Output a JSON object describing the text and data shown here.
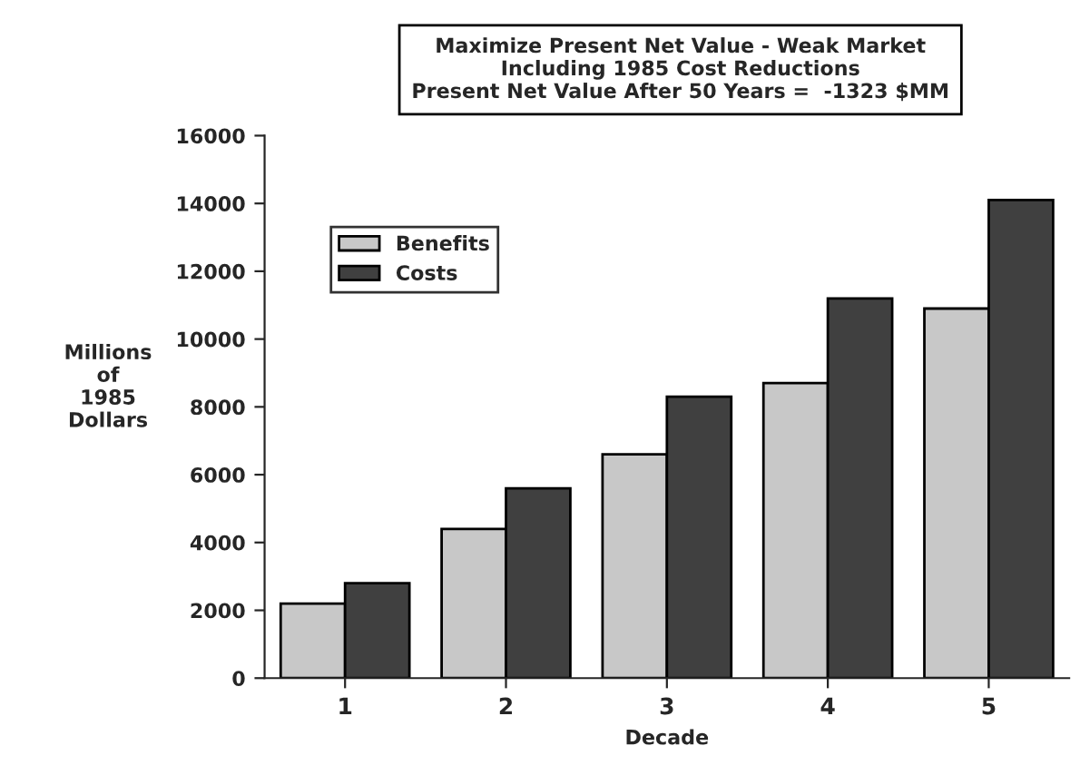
{
  "chart_data": {
    "type": "bar",
    "title": "Maximize Present Net Value - Weak Market\nIncluding 1985 Cost Reductions\nPresent Net Value After 50 Years =  -1323 $MM",
    "xlabel": "Decade",
    "ylabel": "Millions\nof\n1985\nDollars",
    "categories": [
      "1",
      "2",
      "3",
      "4",
      "5"
    ],
    "series": [
      {
        "name": "Benefits",
        "color": "#c8c8c8",
        "values": [
          2200,
          4400,
          6600,
          8700,
          10900
        ]
      },
      {
        "name": "Costs",
        "color": "#404040",
        "values": [
          2800,
          5600,
          8300,
          11200,
          14100
        ]
      }
    ],
    "ylim": [
      0,
      16000
    ],
    "yticks": [
      0,
      2000,
      4000,
      6000,
      8000,
      10000,
      12000,
      14000,
      16000
    ],
    "grid": false,
    "legend": "top left"
  }
}
